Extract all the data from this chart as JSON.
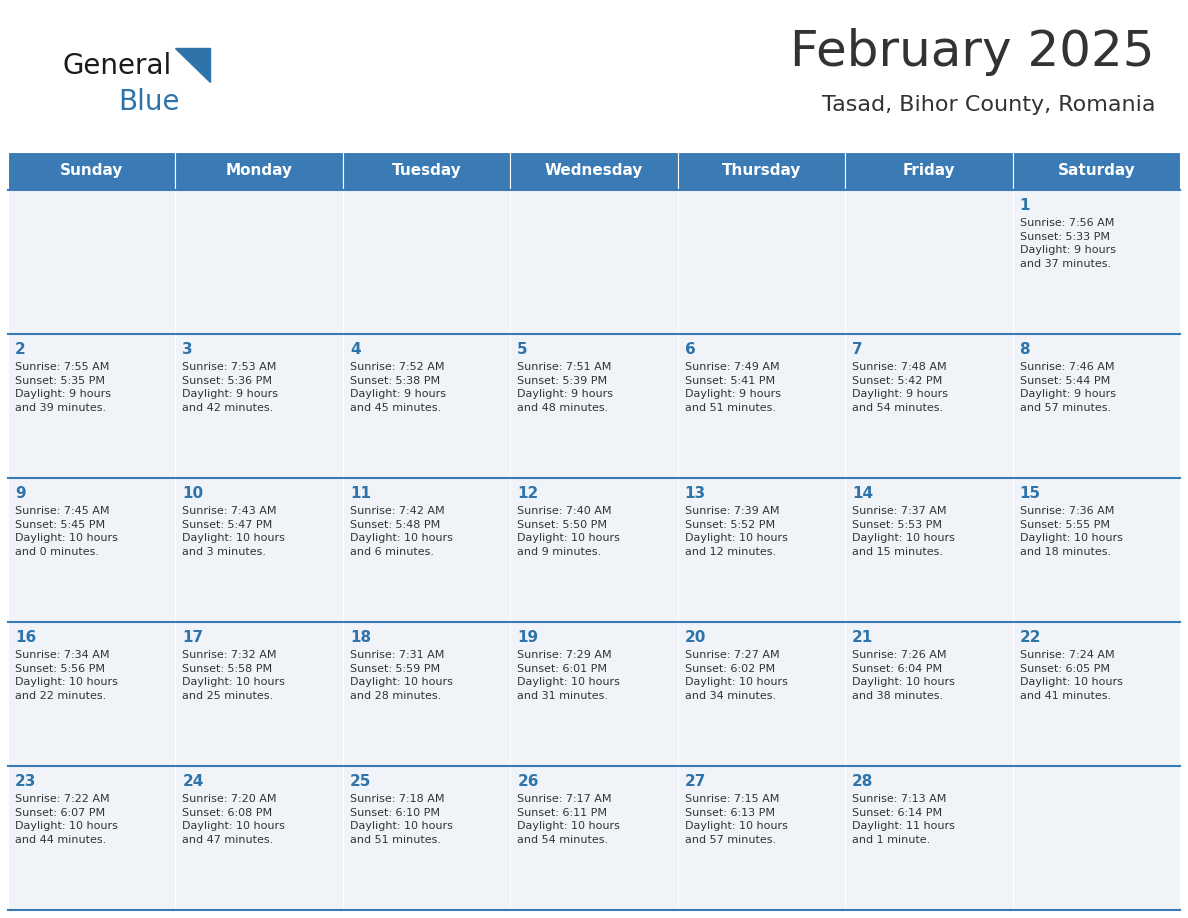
{
  "title": "February 2025",
  "subtitle": "Tasad, Bihor County, Romania",
  "header_color": "#3a7ab5",
  "header_text_color": "#ffffff",
  "cell_bg_color": "#f0f4f8",
  "text_color": "#333333",
  "day_number_color": "#2e74aa",
  "line_color": "#3a7ab5",
  "logo_general_color": "#1a1a1a",
  "logo_blue_color": "#2e74aa",
  "logo_triangle_color": "#2e74aa",
  "days_of_week": [
    "Sunday",
    "Monday",
    "Tuesday",
    "Wednesday",
    "Thursday",
    "Friday",
    "Saturday"
  ],
  "weeks": [
    [
      {
        "day": null,
        "info": null
      },
      {
        "day": null,
        "info": null
      },
      {
        "day": null,
        "info": null
      },
      {
        "day": null,
        "info": null
      },
      {
        "day": null,
        "info": null
      },
      {
        "day": null,
        "info": null
      },
      {
        "day": 1,
        "info": "Sunrise: 7:56 AM\nSunset: 5:33 PM\nDaylight: 9 hours\nand 37 minutes."
      }
    ],
    [
      {
        "day": 2,
        "info": "Sunrise: 7:55 AM\nSunset: 5:35 PM\nDaylight: 9 hours\nand 39 minutes."
      },
      {
        "day": 3,
        "info": "Sunrise: 7:53 AM\nSunset: 5:36 PM\nDaylight: 9 hours\nand 42 minutes."
      },
      {
        "day": 4,
        "info": "Sunrise: 7:52 AM\nSunset: 5:38 PM\nDaylight: 9 hours\nand 45 minutes."
      },
      {
        "day": 5,
        "info": "Sunrise: 7:51 AM\nSunset: 5:39 PM\nDaylight: 9 hours\nand 48 minutes."
      },
      {
        "day": 6,
        "info": "Sunrise: 7:49 AM\nSunset: 5:41 PM\nDaylight: 9 hours\nand 51 minutes."
      },
      {
        "day": 7,
        "info": "Sunrise: 7:48 AM\nSunset: 5:42 PM\nDaylight: 9 hours\nand 54 minutes."
      },
      {
        "day": 8,
        "info": "Sunrise: 7:46 AM\nSunset: 5:44 PM\nDaylight: 9 hours\nand 57 minutes."
      }
    ],
    [
      {
        "day": 9,
        "info": "Sunrise: 7:45 AM\nSunset: 5:45 PM\nDaylight: 10 hours\nand 0 minutes."
      },
      {
        "day": 10,
        "info": "Sunrise: 7:43 AM\nSunset: 5:47 PM\nDaylight: 10 hours\nand 3 minutes."
      },
      {
        "day": 11,
        "info": "Sunrise: 7:42 AM\nSunset: 5:48 PM\nDaylight: 10 hours\nand 6 minutes."
      },
      {
        "day": 12,
        "info": "Sunrise: 7:40 AM\nSunset: 5:50 PM\nDaylight: 10 hours\nand 9 minutes."
      },
      {
        "day": 13,
        "info": "Sunrise: 7:39 AM\nSunset: 5:52 PM\nDaylight: 10 hours\nand 12 minutes."
      },
      {
        "day": 14,
        "info": "Sunrise: 7:37 AM\nSunset: 5:53 PM\nDaylight: 10 hours\nand 15 minutes."
      },
      {
        "day": 15,
        "info": "Sunrise: 7:36 AM\nSunset: 5:55 PM\nDaylight: 10 hours\nand 18 minutes."
      }
    ],
    [
      {
        "day": 16,
        "info": "Sunrise: 7:34 AM\nSunset: 5:56 PM\nDaylight: 10 hours\nand 22 minutes."
      },
      {
        "day": 17,
        "info": "Sunrise: 7:32 AM\nSunset: 5:58 PM\nDaylight: 10 hours\nand 25 minutes."
      },
      {
        "day": 18,
        "info": "Sunrise: 7:31 AM\nSunset: 5:59 PM\nDaylight: 10 hours\nand 28 minutes."
      },
      {
        "day": 19,
        "info": "Sunrise: 7:29 AM\nSunset: 6:01 PM\nDaylight: 10 hours\nand 31 minutes."
      },
      {
        "day": 20,
        "info": "Sunrise: 7:27 AM\nSunset: 6:02 PM\nDaylight: 10 hours\nand 34 minutes."
      },
      {
        "day": 21,
        "info": "Sunrise: 7:26 AM\nSunset: 6:04 PM\nDaylight: 10 hours\nand 38 minutes."
      },
      {
        "day": 22,
        "info": "Sunrise: 7:24 AM\nSunset: 6:05 PM\nDaylight: 10 hours\nand 41 minutes."
      }
    ],
    [
      {
        "day": 23,
        "info": "Sunrise: 7:22 AM\nSunset: 6:07 PM\nDaylight: 10 hours\nand 44 minutes."
      },
      {
        "day": 24,
        "info": "Sunrise: 7:20 AM\nSunset: 6:08 PM\nDaylight: 10 hours\nand 47 minutes."
      },
      {
        "day": 25,
        "info": "Sunrise: 7:18 AM\nSunset: 6:10 PM\nDaylight: 10 hours\nand 51 minutes."
      },
      {
        "day": 26,
        "info": "Sunrise: 7:17 AM\nSunset: 6:11 PM\nDaylight: 10 hours\nand 54 minutes."
      },
      {
        "day": 27,
        "info": "Sunrise: 7:15 AM\nSunset: 6:13 PM\nDaylight: 10 hours\nand 57 minutes."
      },
      {
        "day": 28,
        "info": "Sunrise: 7:13 AM\nSunset: 6:14 PM\nDaylight: 11 hours\nand 1 minute."
      },
      {
        "day": null,
        "info": null
      }
    ]
  ],
  "fig_width": 11.88,
  "fig_height": 9.18,
  "dpi": 100,
  "title_fontsize": 36,
  "subtitle_fontsize": 16,
  "header_fontsize": 11,
  "day_num_fontsize": 11,
  "info_fontsize": 8
}
